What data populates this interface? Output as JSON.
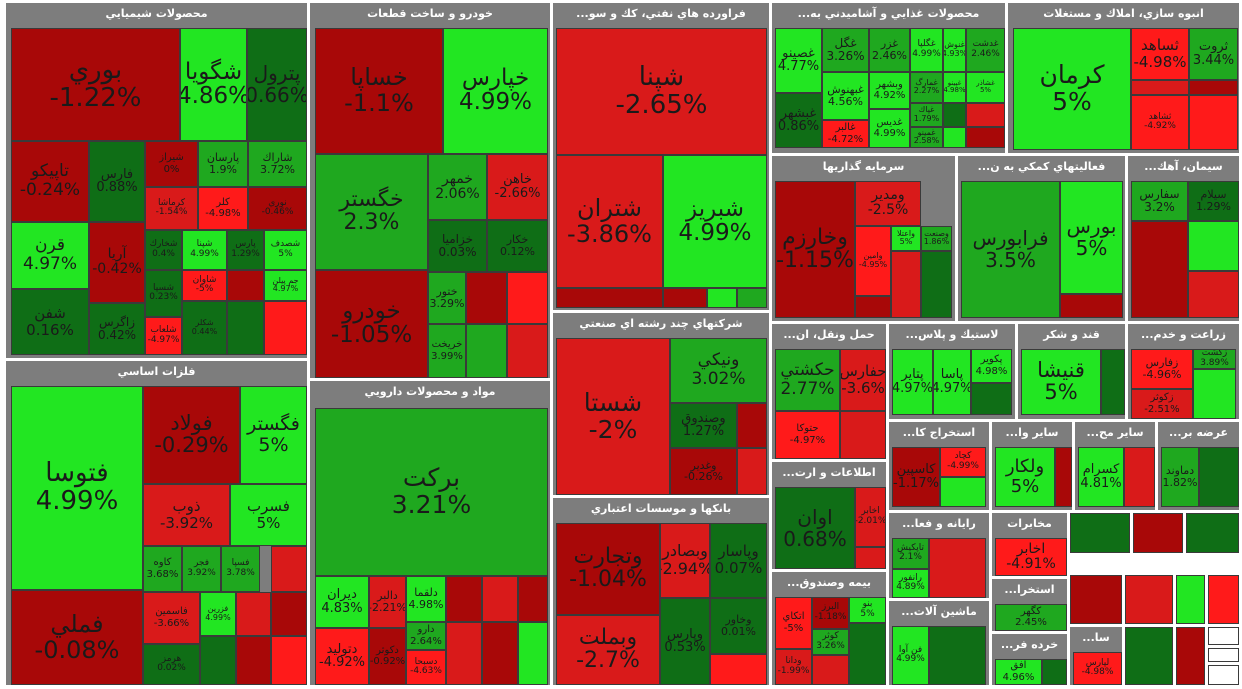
{
  "colors": {
    "strong_green": "#22e622",
    "mid_green": "#1fa81f",
    "dark_green": "#0f6e16",
    "dark_red": "#a80808",
    "red": "#d91a1a",
    "bright_red": "#ff1a1a",
    "sector_bar": "#7d7d7d",
    "empty": "#ffffff"
  },
  "chart_data": {
    "type": "heatmap",
    "title": "",
    "sectors": [
      {
        "name": "محصولات شيميايي",
        "tiles": [
          {
            "symbol": "پتروشيمي بوري",
            "label": "بوري",
            "change": -1.22
          },
          {
            "symbol": "شگويا",
            "label": "شگويا",
            "change": 4.86
          },
          {
            "symbol": "پترول",
            "label": "پترول",
            "change": 0.66
          },
          {
            "symbol": "تاپيكو",
            "label": "تاپيكو",
            "change": -0.24
          },
          {
            "symbol": "فارس",
            "label": "فارس",
            "change": 0.88
          },
          {
            "symbol": "شيراز",
            "label": "شيراز",
            "change": 0
          },
          {
            "symbol": "پارسان",
            "label": "پارسان",
            "change": 1.9
          },
          {
            "symbol": "شاراك",
            "label": "شاراك",
            "change": 3.72
          },
          {
            "symbol": "كرماشا",
            "label": "كرماشا",
            "change": -1.54
          },
          {
            "symbol": "كلر",
            "label": "كلر",
            "change": -4.98
          },
          {
            "symbol": "نوري",
            "label": "نوري",
            "change": -0.46
          },
          {
            "symbol": "قرن",
            "label": "قرن",
            "change": 4.97
          },
          {
            "symbol": "آريا",
            "label": "آريا",
            "change": -0.42
          },
          {
            "symbol": "شخارك",
            "label": "شخارك",
            "change": 0.4
          },
          {
            "symbol": "شپنا",
            "label": "شپنا",
            "change": 4.99
          },
          {
            "symbol": "پارس",
            "label": "پارس",
            "change": 1.29
          },
          {
            "symbol": "شصدف",
            "label": "شصدف",
            "change": 5
          },
          {
            "symbol": "شاوان",
            "label": "شاوان",
            "change": -5
          },
          {
            "symbol": "جم پيلن",
            "label": "جم پيلن",
            "change": 4.97
          },
          {
            "symbol": "شسپا",
            "label": "شسپا",
            "change": 0.23
          },
          {
            "symbol": "شفن",
            "label": "شفن",
            "change": 0.16
          },
          {
            "symbol": "زاگرس",
            "label": "زاگرس",
            "change": 0.42
          },
          {
            "symbol": "شلعاب",
            "label": "شلعاب",
            "change": -4.97
          },
          {
            "symbol": "شكلر",
            "label": "شكلر",
            "change": 0.44
          }
        ]
      },
      {
        "name": "فلزات اساسي",
        "tiles": [
          {
            "symbol": "فتوسا",
            "label": "فتوسا",
            "change": 4.99
          },
          {
            "symbol": "فولاد",
            "label": "فولاد",
            "change": -0.29
          },
          {
            "symbol": "فگستر",
            "label": "فگستر",
            "change": 5
          },
          {
            "symbol": "ذوب",
            "label": "ذوب",
            "change": -3.92
          },
          {
            "symbol": "فسرب",
            "label": "فسرب",
            "change": 5
          },
          {
            "symbol": "كاوه",
            "label": "كاوه",
            "change": 3.68
          },
          {
            "symbol": "فجر",
            "label": "فجر",
            "change": 3.92
          },
          {
            "symbol": "فسپا",
            "label": "فسپا",
            "change": 3.78
          },
          {
            "symbol": "فملي",
            "label": "فملي",
            "change": -0.08
          },
          {
            "symbol": "فاسمين",
            "label": "فاسمين",
            "change": -3.66
          },
          {
            "symbol": "فزرين",
            "label": "فزرين",
            "change": 4.99
          },
          {
            "symbol": "هرمز",
            "label": "هرمز",
            "change": 0.02
          }
        ]
      },
      {
        "name": "خودرو و ساخت قطعات",
        "tiles": [
          {
            "symbol": "خساپا",
            "label": "خساپا",
            "change": -1.1
          },
          {
            "symbol": "خپارس",
            "label": "خپارس",
            "change": 4.99
          },
          {
            "symbol": "خگستر",
            "label": "خگستر",
            "change": 2.3
          },
          {
            "symbol": "خمهر",
            "label": "خمهر",
            "change": 2.06
          },
          {
            "symbol": "خاهن",
            "label": "خاهن",
            "change": -2.66
          },
          {
            "symbol": "خزاميا",
            "label": "خزاميا",
            "change": 0.03
          },
          {
            "symbol": "خكار",
            "label": "خكار",
            "change": 0.12
          },
          {
            "symbol": "خودرو",
            "label": "خودرو",
            "change": -1.05
          },
          {
            "symbol": "ختور",
            "label": "ختور",
            "change": 3.29
          },
          {
            "symbol": "خريخت",
            "label": "خريخت",
            "change": 3.99
          }
        ]
      },
      {
        "name": "مواد و محصولات دارويي",
        "tiles": [
          {
            "symbol": "بركت",
            "label": "بركت",
            "change": 3.21
          },
          {
            "symbol": "ديران",
            "label": "ديران",
            "change": 4.83
          },
          {
            "symbol": "دالبر",
            "label": "دالبر",
            "change": -2.21
          },
          {
            "symbol": "دلقما",
            "label": "دلقما",
            "change": 4.98
          },
          {
            "symbol": "دارو",
            "label": "دارو",
            "change": 2.64
          },
          {
            "symbol": "دتوليد",
            "label": "دتوليد",
            "change": -4.92
          },
          {
            "symbol": "دكوثر",
            "label": "دكوثر",
            "change": -0.92
          },
          {
            "symbol": "دسبحا",
            "label": "دسبحا",
            "change": -4.63
          }
        ]
      },
      {
        "name": "فراورده هاي نفتي، كك و سو...",
        "tiles": [
          {
            "symbol": "شپنا",
            "label": "شپنا",
            "change": -2.65
          },
          {
            "symbol": "شتران",
            "label": "شتران",
            "change": -3.86
          },
          {
            "symbol": "شبريز",
            "label": "شبريز",
            "change": 4.99
          }
        ]
      },
      {
        "name": "شركتهاي چند رشته اي صنعتي",
        "tiles": [
          {
            "symbol": "شستا",
            "label": "شستا",
            "change": -2
          },
          {
            "symbol": "ونيكي",
            "label": "ونيكي",
            "change": 3.02
          },
          {
            "symbol": "وصندوق",
            "label": "وصندوق",
            "change": 1.27
          },
          {
            "symbol": "وغدير",
            "label": "وغدير",
            "change": -0.26
          }
        ]
      },
      {
        "name": "بانكها و موسسات اعتباري",
        "tiles": [
          {
            "symbol": "وتجارت",
            "label": "وتجارت",
            "change": -1.04
          },
          {
            "symbol": "وبصادر",
            "label": "وبصادر",
            "change": -2.94
          },
          {
            "symbol": "وپاسار",
            "label": "وپاسار",
            "change": 0.07
          },
          {
            "symbol": "وبملت",
            "label": "وبملت",
            "change": -2.7
          },
          {
            "symbol": "وپارس",
            "label": "وپارس",
            "change": 0.53
          },
          {
            "symbol": "وخاور",
            "label": "وخاور",
            "change": 0.01
          }
        ]
      },
      {
        "name": "محصولات غذايي و آشاميدني به...",
        "tiles": [
          {
            "symbol": "غصينو",
            "label": "غصينو",
            "change": 4.77
          },
          {
            "symbol": "غگل",
            "label": "غگل",
            "change": 3.26
          },
          {
            "symbol": "غزر",
            "label": "غزر",
            "change": 2.46
          },
          {
            "symbol": "غگلپا",
            "label": "غگلپا",
            "change": 4.99
          },
          {
            "symbol": "غنوش",
            "label": "غنوش",
            "change": 4.93
          },
          {
            "symbol": "غدشت",
            "label": "غدشت",
            "change": 2.46
          },
          {
            "symbol": "غبهنوش",
            "label": "غبهنوش",
            "change": 4.56
          },
          {
            "symbol": "وبشهر",
            "label": "وبشهر",
            "change": 4.92
          },
          {
            "symbol": "غمارگ",
            "label": "غمارگ",
            "change": 2.27
          },
          {
            "symbol": "غپينو",
            "label": "غپينو",
            "change": 4.98
          },
          {
            "symbol": "غشاذر",
            "label": "غشاذر",
            "change": 5
          },
          {
            "symbol": "غبشهر",
            "label": "غبشهر",
            "change": 0.86
          },
          {
            "symbol": "غالبر",
            "label": "غالبر",
            "change": -4.72
          },
          {
            "symbol": "غديس",
            "label": "غديس",
            "change": 4.99
          },
          {
            "symbol": "غپاك",
            "label": "غپاك",
            "change": 1.79
          },
          {
            "symbol": "غمينو",
            "label": "غمينو",
            "change": 2.58
          }
        ]
      },
      {
        "name": "انبوه سازي، املاك و مستغلات",
        "tiles": [
          {
            "symbol": "كرمان",
            "label": "كرمان",
            "change": 5
          },
          {
            "symbol": "ثساهد",
            "label": "ثساهد",
            "change": -4.98
          },
          {
            "symbol": "ثروت",
            "label": "ثروت",
            "change": 3.44
          },
          {
            "symbol": "ثشاهد",
            "label": "ثشاهد",
            "change": -4.92
          }
        ]
      },
      {
        "name": "سرمايه گذاريها",
        "tiles": [
          {
            "symbol": "وخارزم",
            "label": "وخارزم",
            "change": -1.15
          },
          {
            "symbol": "ومدير",
            "label": "ومدير",
            "change": -2.5
          },
          {
            "symbol": "وامين",
            "label": "وامين",
            "change": -4.95
          },
          {
            "symbol": "واعتلا",
            "label": "واعتلا",
            "change": 5
          },
          {
            "symbol": "وصنعت",
            "label": "وصنعت",
            "change": 1.86
          }
        ]
      },
      {
        "name": "فعاليتهاي كمكي به ن...",
        "tiles": [
          {
            "symbol": "فرابورس",
            "label": "فرابورس",
            "change": 3.5
          },
          {
            "symbol": "بورس",
            "label": "بورس",
            "change": 5
          }
        ]
      },
      {
        "name": "سيمان، آهك...",
        "tiles": [
          {
            "symbol": "سفارس",
            "label": "سفارس",
            "change": 3.2
          },
          {
            "symbol": "سيلام",
            "label": "سيلام",
            "change": 1.29
          }
        ]
      },
      {
        "name": "حمل ونقل، ان...",
        "tiles": [
          {
            "symbol": "حكشتي",
            "label": "حكشتي",
            "change": 2.77
          },
          {
            "symbol": "حفارس",
            "label": "حفارس",
            "change": -3.6
          },
          {
            "symbol": "حتوكا",
            "label": "حتوكا",
            "change": -4.97
          }
        ]
      },
      {
        "name": "لاستيك و پلاس...",
        "tiles": [
          {
            "symbol": "پتاير",
            "label": "پتاير",
            "change": 4.97
          },
          {
            "symbol": "پاسا",
            "label": "پاسا",
            "change": 4.97
          },
          {
            "symbol": "پكوير",
            "label": "پكوير",
            "change": 4.98
          }
        ]
      },
      {
        "name": "قند و شكر",
        "tiles": [
          {
            "symbol": "قنيشا",
            "label": "قنيشا",
            "change": 5
          }
        ]
      },
      {
        "name": "زراعت و خدم...",
        "tiles": [
          {
            "symbol": "زفارس",
            "label": "زفارس",
            "change": -4.96
          },
          {
            "symbol": "زكشت",
            "label": "زكشت",
            "change": 3.89
          },
          {
            "symbol": "زكوثر",
            "label": "زكوثر",
            "change": -2.51
          }
        ]
      },
      {
        "name": "استخراج كا...",
        "tiles": [
          {
            "symbol": "كاسپين",
            "label": "كاسپين",
            "change": -1.17
          },
          {
            "symbol": "كچاد",
            "label": "كچاد",
            "change": -4.99
          }
        ]
      },
      {
        "name": "ساير وا...",
        "tiles": [
          {
            "symbol": "ولكار",
            "label": "ولكار",
            "change": 5
          }
        ]
      },
      {
        "name": "ساير مح...",
        "tiles": [
          {
            "symbol": "كسرام",
            "label": "كسرام",
            "change": 4.81
          }
        ]
      },
      {
        "name": "عرضه بر...",
        "tiles": [
          {
            "symbol": "دماوند",
            "label": "دماوند",
            "change": 1.82
          }
        ]
      },
      {
        "name": "اطلاعات و ارت...",
        "tiles": [
          {
            "symbol": "اوان",
            "label": "اوان",
            "change": 0.68
          },
          {
            "symbol": "اخابر",
            "label": "اخابر",
            "change": -2.01
          }
        ]
      },
      {
        "name": "رايانه و فعا...",
        "tiles": [
          {
            "symbol": "تاپكيش",
            "label": "تاپكيش",
            "change": 2.1
          },
          {
            "symbol": "رانفور",
            "label": "رانفور",
            "change": 4.89
          }
        ]
      },
      {
        "name": "مخابرات",
        "tiles": [
          {
            "symbol": "اخابر",
            "label": "اخابر",
            "change": -4.91
          }
        ]
      },
      {
        "name": "بيمه وصندوق...",
        "tiles": [
          {
            "symbol": "اتكاي",
            "label": "اتكاي",
            "change": -5
          },
          {
            "symbol": "البرز",
            "label": "البرز",
            "change": -1.18
          },
          {
            "symbol": "بنو",
            "label": "بنو",
            "change": 5
          },
          {
            "symbol": "ودانا",
            "label": "ودانا",
            "change": -1.99
          },
          {
            "symbol": "كوثر",
            "label": "كوثر",
            "change": 3.26
          }
        ]
      },
      {
        "name": "ماشين آلات...",
        "tiles": [
          {
            "symbol": "فن آوا",
            "label": "فن آوا",
            "change": 4.99
          }
        ]
      },
      {
        "name": "استخرا...",
        "tiles": [
          {
            "symbol": "كگهر",
            "label": "كگهر",
            "change": 2.45
          }
        ]
      },
      {
        "name": "خرده فر...",
        "tiles": [
          {
            "symbol": "افق",
            "label": "افق",
            "change": 4.96
          }
        ]
      },
      {
        "name": "سا...",
        "tiles": [
          {
            "symbol": "لپارس",
            "label": "لپارس",
            "change": -4.98
          }
        ]
      }
    ]
  }
}
